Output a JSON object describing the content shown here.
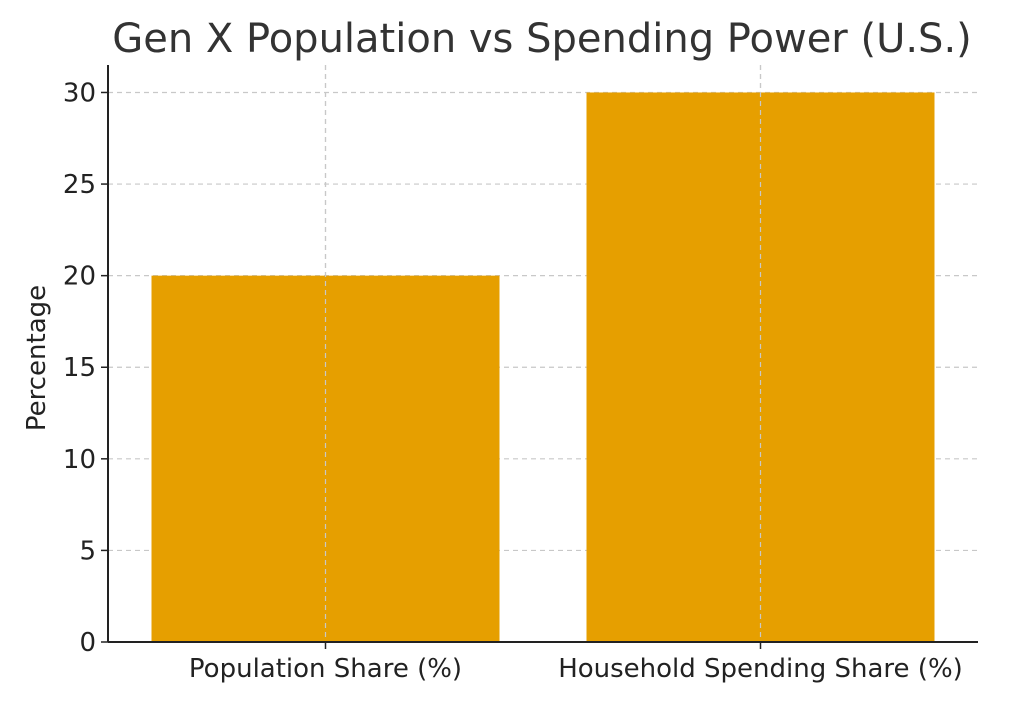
{
  "chart_data": {
    "type": "bar",
    "title": "Gen X Population vs Spending Power (U.S.)",
    "xlabel": "",
    "ylabel": "Percentage",
    "categories": [
      "Population Share (%)",
      "Household Spending Share (%)"
    ],
    "values": [
      20,
      30
    ],
    "ylim": [
      0,
      31.5
    ],
    "yticks": [
      0,
      5,
      10,
      15,
      20,
      25,
      30
    ],
    "grid": true,
    "bar_color": "#e69f00"
  }
}
